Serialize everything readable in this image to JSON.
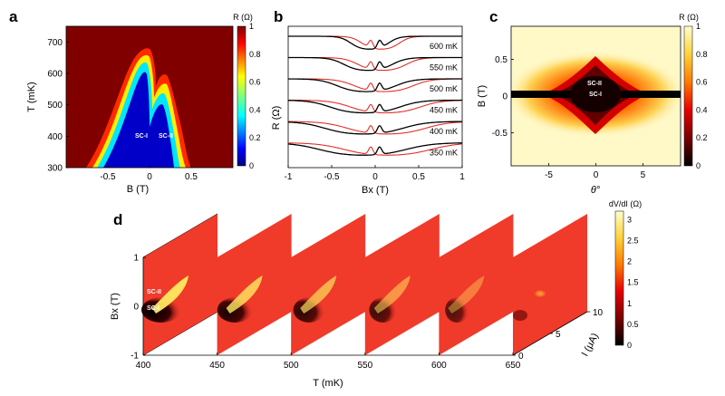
{
  "chart_data": [
    {
      "panel": "a",
      "type": "heatmap",
      "xlabel": "B (T)",
      "ylabel": "T (mK)",
      "xlim": [
        -1,
        1
      ],
      "ylim": [
        300,
        750
      ],
      "xticks": [
        "-0.5",
        "0",
        "0.5"
      ],
      "yticks": [
        "300",
        "400",
        "500",
        "600",
        "700"
      ],
      "colorbar": {
        "label": "R (Ω)",
        "ticks": [
          "0",
          "0.2",
          "0.4",
          "0.6",
          "0.8",
          "1"
        ],
        "range": [
          0,
          1
        ]
      },
      "annotations": [
        "SC-I",
        "SC-II"
      ],
      "regions": [
        {
          "name": "SC-I",
          "field_center": -0.1,
          "tc_peak_mK": 690
        },
        {
          "name": "SC-II",
          "field_center": 0.18,
          "tc_peak_mK": 590
        }
      ]
    },
    {
      "panel": "b",
      "type": "line",
      "xlabel": "Bx (T)",
      "ylabel": "R (Ω)",
      "xlim": [
        -1,
        1
      ],
      "xticks": [
        "-1",
        "-0.5",
        "0",
        "0.5",
        "1"
      ],
      "series_labels": [
        "600 mK",
        "550 mK",
        "500 mK",
        "450 mK",
        "400 mK",
        "350 mK"
      ],
      "series_colors": [
        "#000000",
        "#e0302a"
      ],
      "traces": [
        {
          "label": "600 mK",
          "dip_half_width_T": 0.28
        },
        {
          "label": "550 mK",
          "dip_half_width_T": 0.36
        },
        {
          "label": "500 mK",
          "dip_half_width_T": 0.44
        },
        {
          "label": "450 mK",
          "dip_half_width_T": 0.52
        },
        {
          "label": "400 mK",
          "dip_half_width_T": 0.58
        },
        {
          "label": "350 mK",
          "dip_half_width_T": 0.64
        }
      ]
    },
    {
      "panel": "c",
      "type": "heatmap",
      "xlabel": "θ°",
      "ylabel": "B (T)",
      "xlim": [
        -9,
        9
      ],
      "ylim": [
        -0.95,
        0.95
      ],
      "xticks": [
        "-5",
        "0",
        "5"
      ],
      "yticks": [
        "-0.5",
        "0",
        "0.5"
      ],
      "colorbar": {
        "label": "R (Ω)",
        "ticks": [
          "0",
          "0.2",
          "0.4",
          "0.6",
          "0.8",
          "1"
        ],
        "range": [
          0,
          1
        ]
      },
      "annotations": [
        "SC-II",
        "SC-I"
      ]
    },
    {
      "panel": "d",
      "type": "heatmap",
      "xlabel": "T (mK)",
      "ylabel": "Bx (T)",
      "zlabel": "I (μA)",
      "xticks": [
        "400",
        "450",
        "500",
        "550",
        "600",
        "650"
      ],
      "yticks": [
        "-1",
        "0",
        "1"
      ],
      "zticks": [
        "0",
        "5",
        "10"
      ],
      "slices_mK": [
        400,
        450,
        500,
        550,
        600,
        650
      ],
      "colorbar": {
        "label": "dV/dI (Ω)",
        "ticks": [
          "0",
          "0.5",
          "1",
          "1.5",
          "2",
          "2.5",
          "3"
        ],
        "range": [
          0,
          3.2
        ]
      },
      "annotations": [
        "SC-II",
        "SC-I"
      ]
    }
  ],
  "colors": {
    "jet": [
      "#00007f",
      "#0000ff",
      "#007fff",
      "#00ffff",
      "#7fff7f",
      "#ffff00",
      "#ff7f00",
      "#ff0000",
      "#7f0000"
    ],
    "hot": [
      "#000000",
      "#7a0000",
      "#e60000",
      "#ff5a00",
      "#ffb400",
      "#ffee66",
      "#ffffcc"
    ],
    "slice_bg": "#f03a2a"
  }
}
